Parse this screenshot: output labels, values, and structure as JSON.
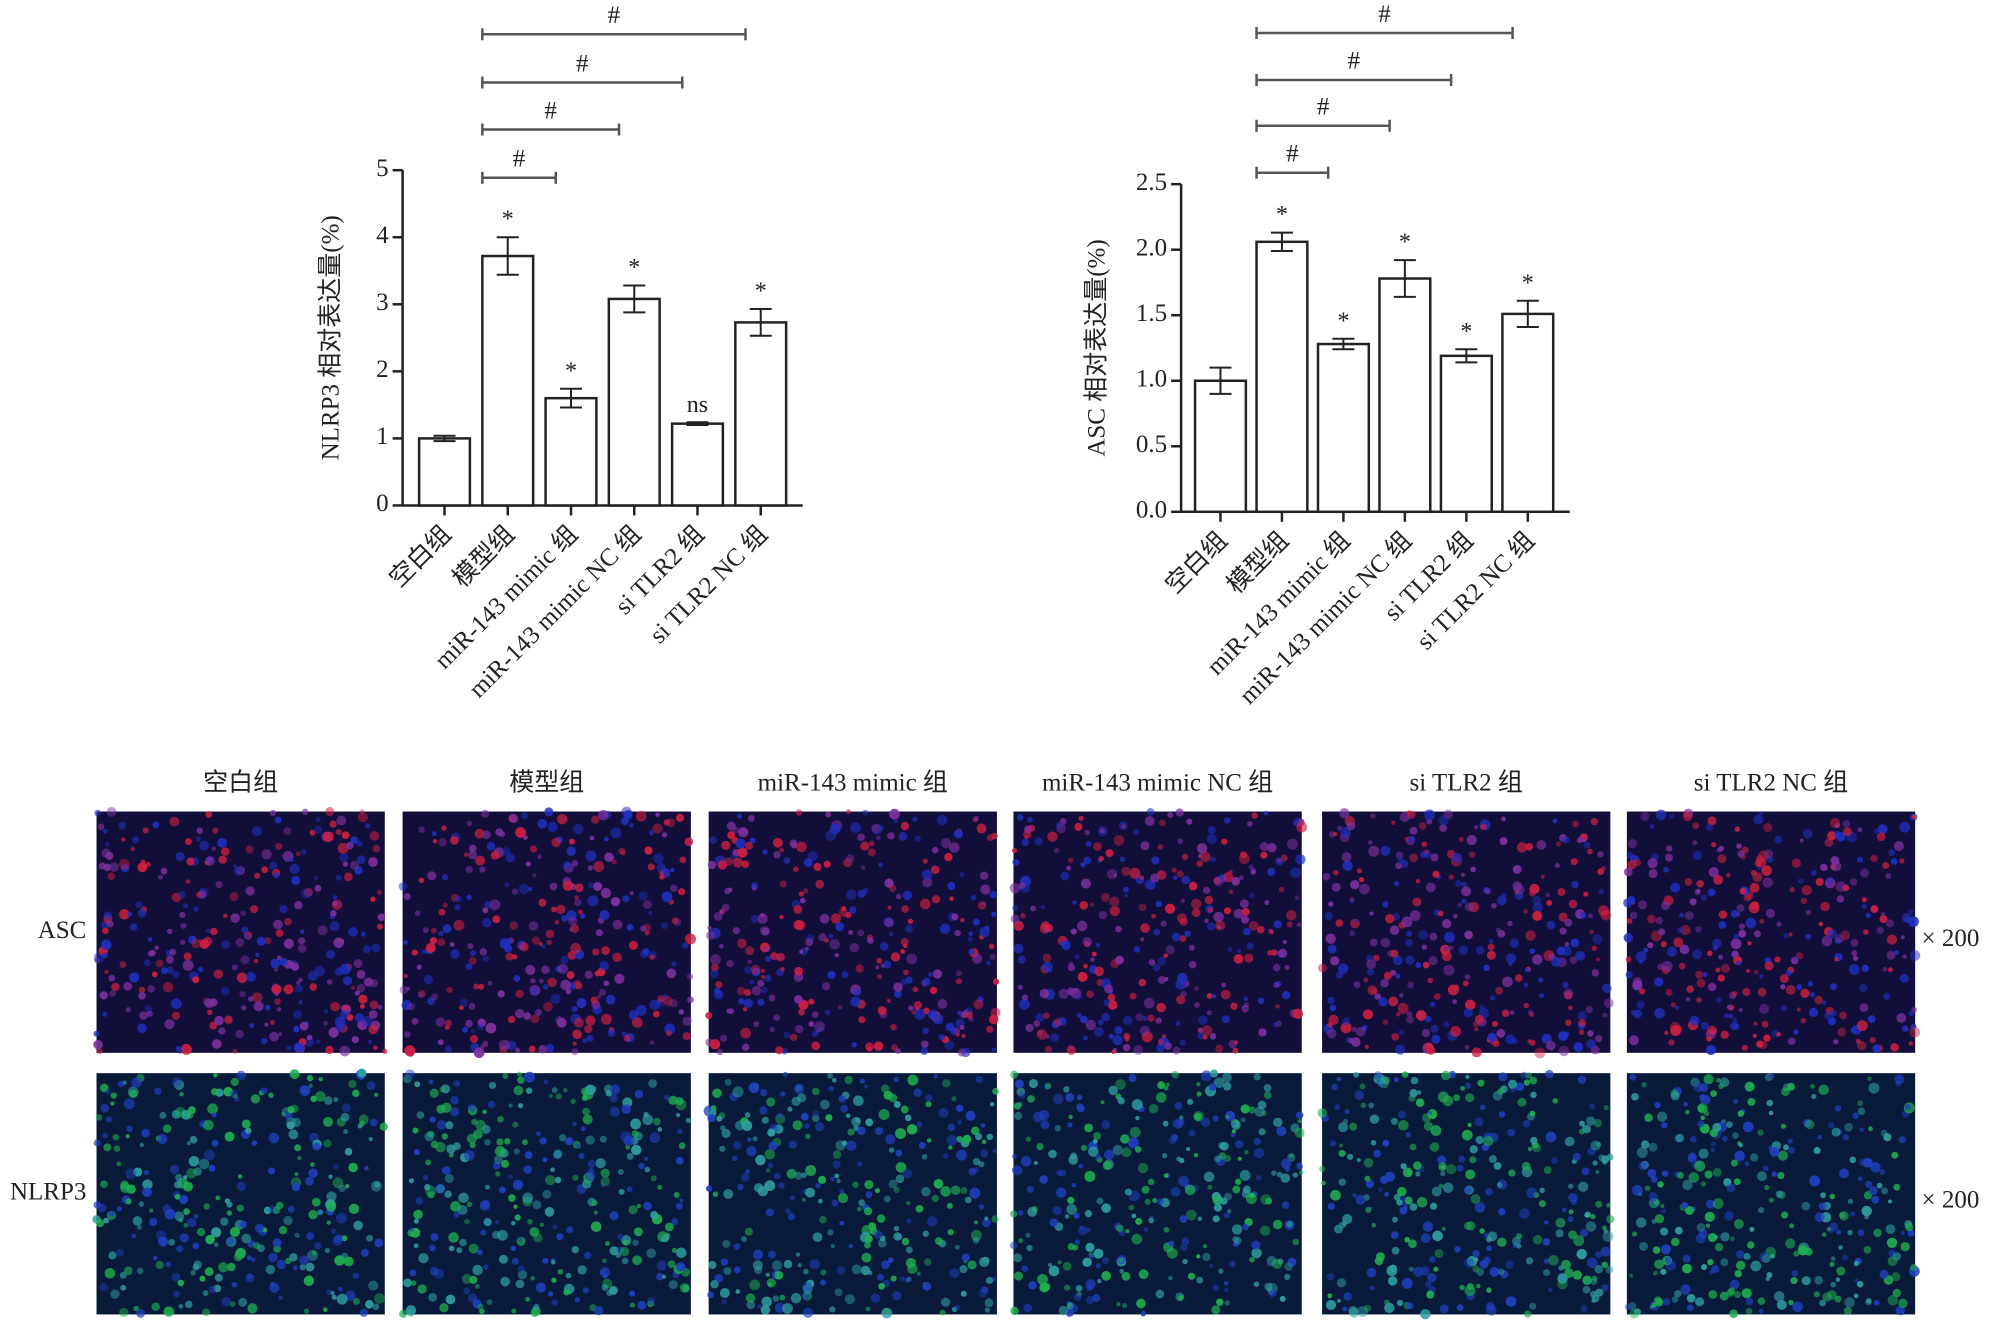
{
  "chart_data": [
    {
      "type": "bar",
      "ylabel": "NLRP3 相对表达量(%)",
      "categories": [
        "空白组",
        "模型组",
        "miR-143 mimic 组",
        "miR-143 mimic NC 组",
        "si TLR2 组",
        "si TLR2 NC 组"
      ],
      "values": [
        1.0,
        3.72,
        1.6,
        3.08,
        1.22,
        2.73
      ],
      "errors": [
        0.04,
        0.28,
        0.14,
        0.2,
        0.02,
        0.2
      ],
      "significance": [
        null,
        "*",
        "*",
        "*",
        "ns",
        "*"
      ],
      "brackets": [
        {
          "from": 1,
          "to": 2,
          "label": "#"
        },
        {
          "from": 1,
          "to": 3,
          "label": "#"
        },
        {
          "from": 1,
          "to": 4,
          "label": "#"
        },
        {
          "from": 1,
          "to": 5,
          "label": "#"
        }
      ],
      "ylim": [
        0,
        5
      ],
      "yticks": [
        0,
        1,
        2,
        3,
        4,
        5
      ],
      "color": "#ffffff"
    },
    {
      "type": "bar",
      "ylabel": "ASC 相对表达量(%)",
      "categories": [
        "空白组",
        "模型组",
        "miR-143 mimic 组",
        "miR-143 mimic NC 组",
        "si TLR2 组",
        "si TLR2 NC 组"
      ],
      "values": [
        1.0,
        2.06,
        1.28,
        1.78,
        1.19,
        1.51
      ],
      "errors": [
        0.1,
        0.07,
        0.04,
        0.14,
        0.05,
        0.1
      ],
      "significance": [
        null,
        "*",
        "*",
        "*",
        "*",
        "*"
      ],
      "brackets": [
        {
          "from": 1,
          "to": 2,
          "label": "#"
        },
        {
          "from": 1,
          "to": 3,
          "label": "#"
        },
        {
          "from": 1,
          "to": 4,
          "label": "#"
        },
        {
          "from": 1,
          "to": 5,
          "label": "#"
        }
      ],
      "ylim": [
        0,
        2.5
      ],
      "yticks": [
        {
          "value": 0,
          "label": "0.0"
        },
        0.5,
        {
          "value": 1,
          "label": "1.0"
        },
        1.5,
        {
          "value": 2,
          "label": "2.0"
        },
        2.5
      ],
      "color": "#ffffff"
    }
  ],
  "figure": {
    "columns": [
      "空白组",
      "模型组",
      "miR-143 mimic 组",
      "miR-143 mimic NC 组",
      "si TLR2 组",
      "si TLR2 NC 组"
    ],
    "rows": [
      "ASC",
      "NLRP3"
    ],
    "magnification": "× 200"
  }
}
